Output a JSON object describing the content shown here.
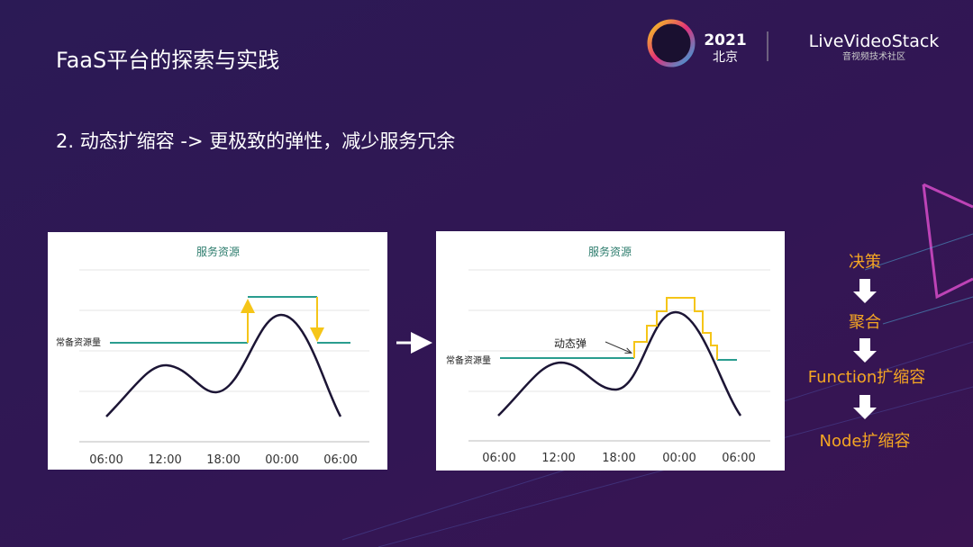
{
  "header": {
    "title": "FaaS平台的探索与实践",
    "event_year": "2021",
    "event_city": "北京",
    "brand": "LiveVideoStack",
    "brand_sub": "音视频技术社区"
  },
  "subtitle": "2. 动态扩缩容 -> 更极致的弹性，减少服务冗余",
  "panels": [
    {
      "title": "服务资源",
      "baseline_label": "常备资源量",
      "x_labels": [
        "06:00",
        "12:00",
        "18:00",
        "00:00",
        "06:00"
      ]
    },
    {
      "title": "服务资源",
      "baseline_label": "常备资源量",
      "annotation": "动态弹",
      "x_labels": [
        "06:00",
        "12:00",
        "18:00",
        "00:00",
        "06:00"
      ]
    }
  ],
  "flow": [
    "决策",
    "聚合",
    "Function扩缩容",
    "Node扩缩容"
  ]
}
